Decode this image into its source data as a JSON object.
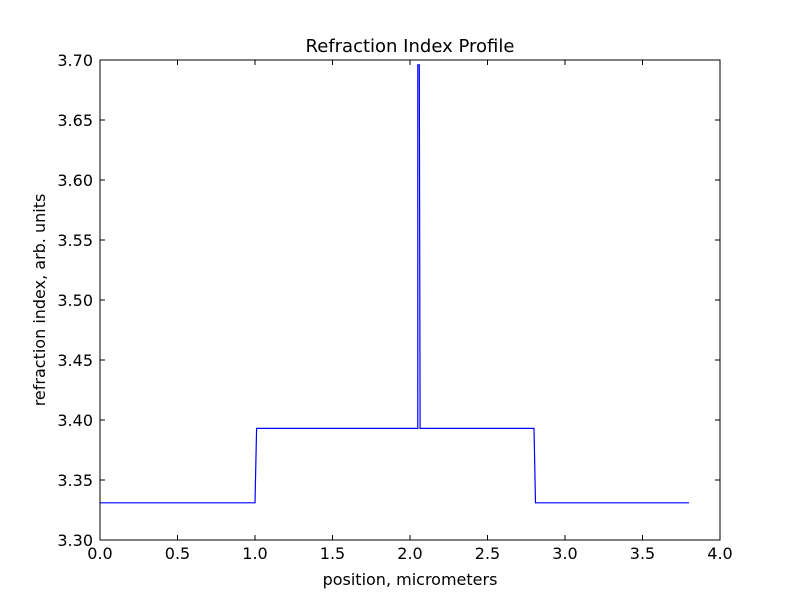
{
  "chart_data": {
    "type": "line",
    "title": "Refraction Index Profile",
    "xlabel": "position, micrometers",
    "ylabel": "refraction index, arb. units",
    "xlim": [
      0.0,
      4.0
    ],
    "ylim": [
      3.3,
      3.7
    ],
    "x_ticks": [
      "0.0",
      "0.5",
      "1.0",
      "1.5",
      "2.0",
      "2.5",
      "3.0",
      "3.5",
      "4.0"
    ],
    "y_ticks": [
      "3.30",
      "3.35",
      "3.40",
      "3.45",
      "3.50",
      "3.55",
      "3.60",
      "3.65",
      "3.70"
    ],
    "grid": false,
    "series": [
      {
        "color": "#0000ff",
        "x": [
          0.0,
          1.0,
          1.01,
          2.05,
          2.05,
          2.06,
          2.065,
          2.8,
          2.81,
          3.8
        ],
        "y": [
          3.331,
          3.331,
          3.393,
          3.393,
          3.696,
          3.696,
          3.393,
          3.393,
          3.331,
          3.331
        ]
      }
    ]
  }
}
